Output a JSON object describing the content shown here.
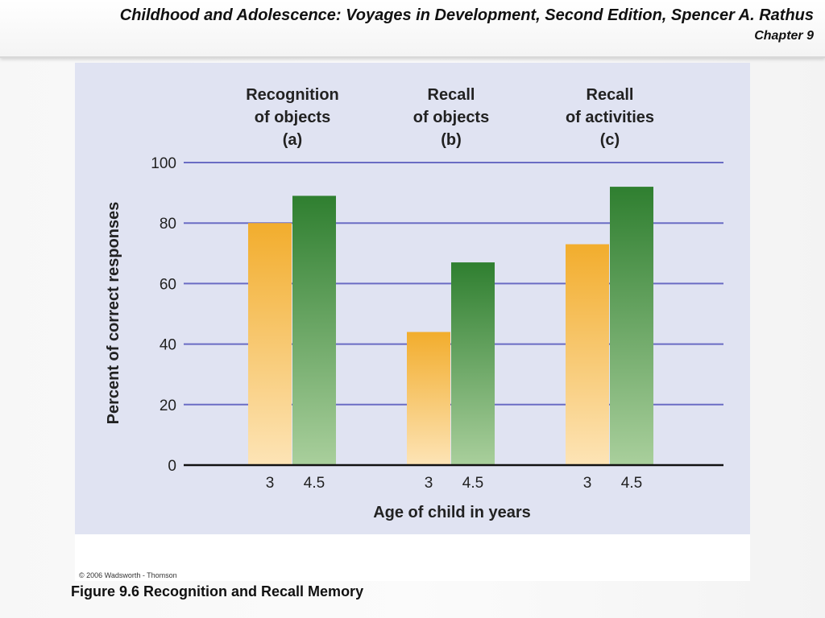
{
  "header": {
    "title": "Childhood and Adolescence: Voyages in Development, Second Edition, Spencer A. Rathus",
    "chapter": "Chapter 9"
  },
  "figure": {
    "copyright": "© 2006 Wadsworth - Thomson",
    "caption": "Figure 9.6 Recognition and Recall Memory"
  },
  "colors": {
    "panel_background": "#e0e3f2",
    "gridline": "#6a6cc4",
    "age3_bar": "#f2ad2d",
    "age45_bar": "#2f7f30"
  },
  "chart_data": {
    "type": "bar",
    "groups": [
      {
        "title": [
          "Recognition",
          "of objects",
          "(a)"
        ],
        "categories": [
          "3",
          "4.5"
        ],
        "values": [
          80,
          89
        ]
      },
      {
        "title": [
          "Recall",
          "of objects",
          "(b)"
        ],
        "categories": [
          "3",
          "4.5"
        ],
        "values": [
          44,
          67
        ]
      },
      {
        "title": [
          "Recall",
          "of activities",
          "(c)"
        ],
        "categories": [
          "3",
          "4.5"
        ],
        "values": [
          73,
          92
        ]
      }
    ],
    "xlabel": "Age of child in years",
    "ylabel": "Percent of correct responses",
    "ylim": [
      0,
      100
    ],
    "yticks": [
      "0",
      "20",
      "40",
      "60",
      "80",
      "100"
    ],
    "grid": true
  }
}
